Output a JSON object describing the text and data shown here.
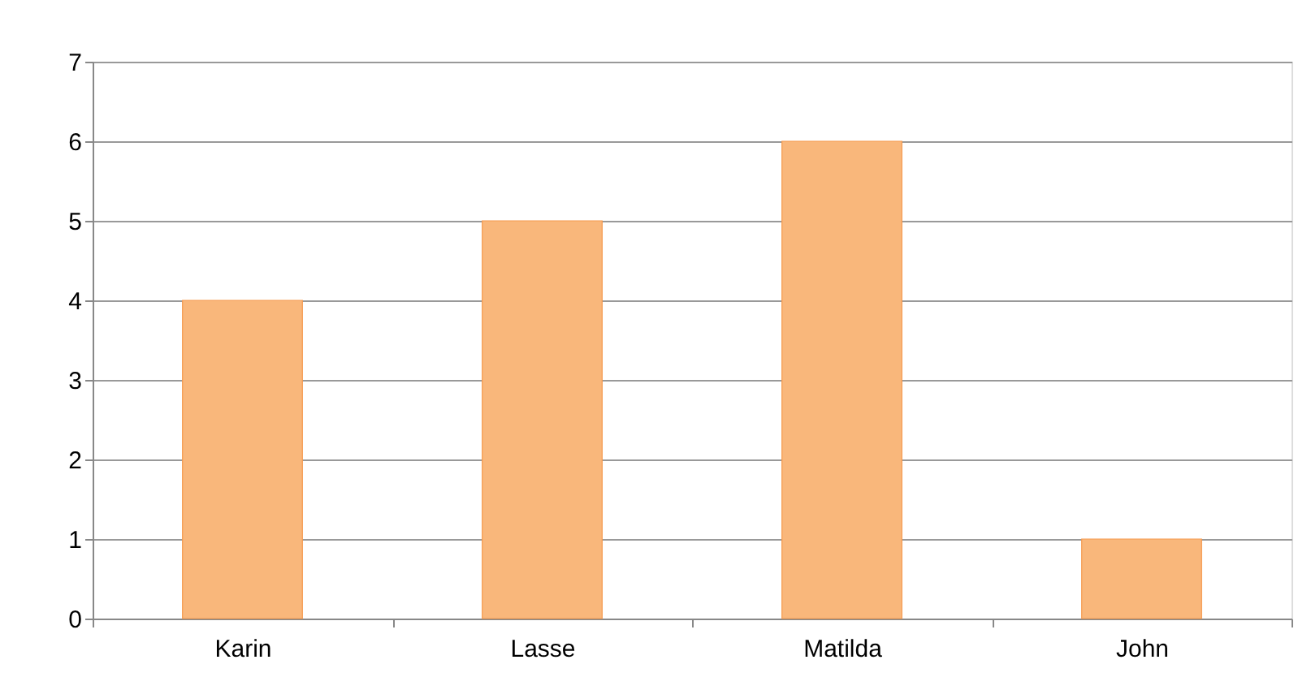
{
  "chart_data": {
    "type": "bar",
    "categories": [
      "Karin",
      "Lasse",
      "Matilda",
      "John"
    ],
    "values": [
      4,
      5,
      6,
      1
    ],
    "color": "#f9b77b",
    "ylim": [
      0,
      7
    ],
    "yticks": [
      0,
      1,
      2,
      3,
      4,
      5,
      6,
      7
    ],
    "grid": "y"
  }
}
